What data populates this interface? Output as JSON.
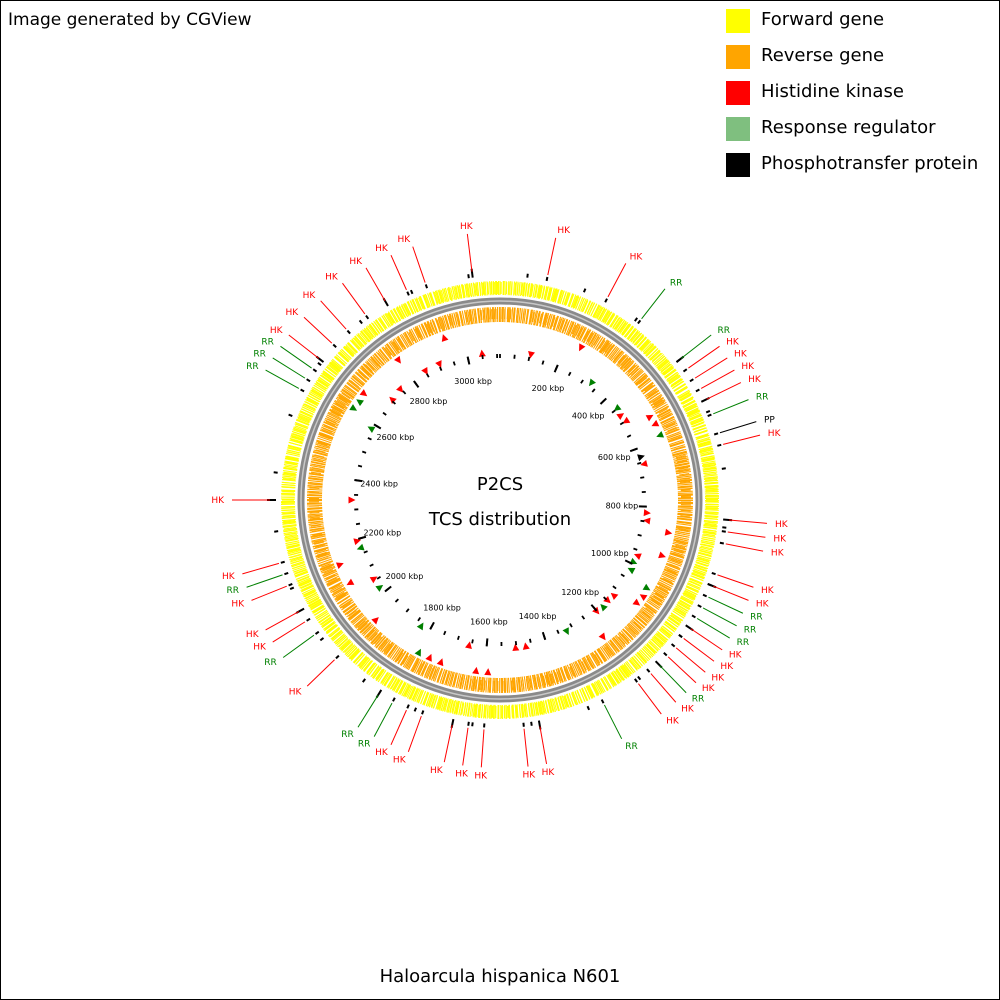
{
  "credit": "Image generated by CGView",
  "organism": "Haloarcula hispanica N601",
  "center": {
    "line1": "P2CS",
    "line2": "TCS distribution"
  },
  "legend": [
    {
      "label": "Forward gene",
      "color": "#ffff00"
    },
    {
      "label": "Reverse gene",
      "color": "#ffa500"
    },
    {
      "label": "Histidine kinase",
      "color": "#ff0000"
    },
    {
      "label": "Response regulator",
      "color": "#7fbf7f"
    },
    {
      "label": "Phosphotransfer protein",
      "color": "#000000"
    }
  ],
  "colors": {
    "forward": "#ffff00",
    "reverse": "#ffa500",
    "HK": "#ff0000",
    "RR": "#008000",
    "PP": "#000000",
    "backbone": "#888888"
  },
  "genome": {
    "length_kbp": 3110,
    "tick_labels": [
      "3000 kbp",
      "200 kbp",
      "400 kbp",
      "600 kbp",
      "800 kbp",
      "1000 kbp",
      "1200 kbp",
      "1400 kbp",
      "1600 kbp",
      "1800 kbp",
      "2000 kbp",
      "2200 kbp",
      "2400 kbp",
      "2600 kbp",
      "2800 kbp"
    ],
    "tick_kbp": [
      3000,
      200,
      400,
      600,
      800,
      1000,
      1200,
      1400,
      1600,
      1800,
      2000,
      2200,
      2400,
      2600,
      2800
    ]
  },
  "features": [
    {
      "label": "HK",
      "type": "HK",
      "deg": 353
    },
    {
      "label": "HK",
      "type": "HK",
      "deg": 12
    },
    {
      "label": "HK",
      "type": "HK",
      "deg": 28
    },
    {
      "label": "RR",
      "type": "RR",
      "deg": 38
    },
    {
      "label": "RR",
      "type": "RR",
      "deg": 52
    },
    {
      "label": "HK",
      "type": "HK",
      "deg": 55
    },
    {
      "label": "HK",
      "type": "HK",
      "deg": 58
    },
    {
      "label": "HK",
      "type": "HK",
      "deg": 61
    },
    {
      "label": "HK",
      "type": "HK",
      "deg": 64
    },
    {
      "label": "RR",
      "type": "RR",
      "deg": 68
    },
    {
      "label": "PP",
      "type": "PP",
      "deg": 73
    },
    {
      "label": "HK",
      "type": "HK",
      "deg": 76
    },
    {
      "label": "HK",
      "type": "HK",
      "deg": 95
    },
    {
      "label": "HK",
      "type": "HK",
      "deg": 98
    },
    {
      "label": "HK",
      "type": "HK",
      "deg": 101
    },
    {
      "label": "HK",
      "type": "HK",
      "deg": 109
    },
    {
      "label": "HK",
      "type": "HK",
      "deg": 112
    },
    {
      "label": "RR",
      "type": "RR",
      "deg": 115
    },
    {
      "label": "RR",
      "type": "RR",
      "deg": 118
    },
    {
      "label": "RR",
      "type": "RR",
      "deg": 121
    },
    {
      "label": "HK",
      "type": "HK",
      "deg": 124
    },
    {
      "label": "HK",
      "type": "HK",
      "deg": 127
    },
    {
      "label": "HK",
      "type": "HK",
      "deg": 130
    },
    {
      "label": "HK",
      "type": "HK",
      "deg": 133
    },
    {
      "label": "RR",
      "type": "RR",
      "deg": 136
    },
    {
      "label": "HK",
      "type": "HK",
      "deg": 139
    },
    {
      "label": "HK",
      "type": "HK",
      "deg": 143
    },
    {
      "label": "RR",
      "type": "RR",
      "deg": 153
    },
    {
      "label": "HK",
      "type": "HK",
      "deg": 170
    },
    {
      "label": "HK",
      "type": "HK",
      "deg": 174
    },
    {
      "label": "HK",
      "type": "HK",
      "deg": 184
    },
    {
      "label": "HK",
      "type": "HK",
      "deg": 188
    },
    {
      "label": "HK",
      "type": "HK",
      "deg": 192
    },
    {
      "label": "HK",
      "type": "HK",
      "deg": 200
    },
    {
      "label": "HK",
      "type": "HK",
      "deg": 204
    },
    {
      "label": "RR",
      "type": "RR",
      "deg": 208
    },
    {
      "label": "RR",
      "type": "RR",
      "deg": 212
    },
    {
      "label": "HK",
      "type": "HK",
      "deg": 226
    },
    {
      "label": "RR",
      "type": "RR",
      "deg": 234
    },
    {
      "label": "HK",
      "type": "HK",
      "deg": 238
    },
    {
      "label": "HK",
      "type": "HK",
      "deg": 241
    },
    {
      "label": "HK",
      "type": "HK",
      "deg": 248
    },
    {
      "label": "RR",
      "type": "RR",
      "deg": 251
    },
    {
      "label": "HK",
      "type": "HK",
      "deg": 254
    },
    {
      "label": "HK",
      "type": "HK",
      "deg": 270
    },
    {
      "label": "RR",
      "type": "RR",
      "deg": 299
    },
    {
      "label": "RR",
      "type": "RR",
      "deg": 302
    },
    {
      "label": "RR",
      "type": "RR",
      "deg": 305
    },
    {
      "label": "HK",
      "type": "HK",
      "deg": 308
    },
    {
      "label": "HK",
      "type": "HK",
      "deg": 313
    },
    {
      "label": "HK",
      "type": "HK",
      "deg": 318
    },
    {
      "label": "HK",
      "type": "HK",
      "deg": 324
    },
    {
      "label": "HK",
      "type": "HK",
      "deg": 330
    },
    {
      "label": "HK",
      "type": "HK",
      "deg": 336
    },
    {
      "label": "HK",
      "type": "HK",
      "deg": 341
    }
  ]
}
